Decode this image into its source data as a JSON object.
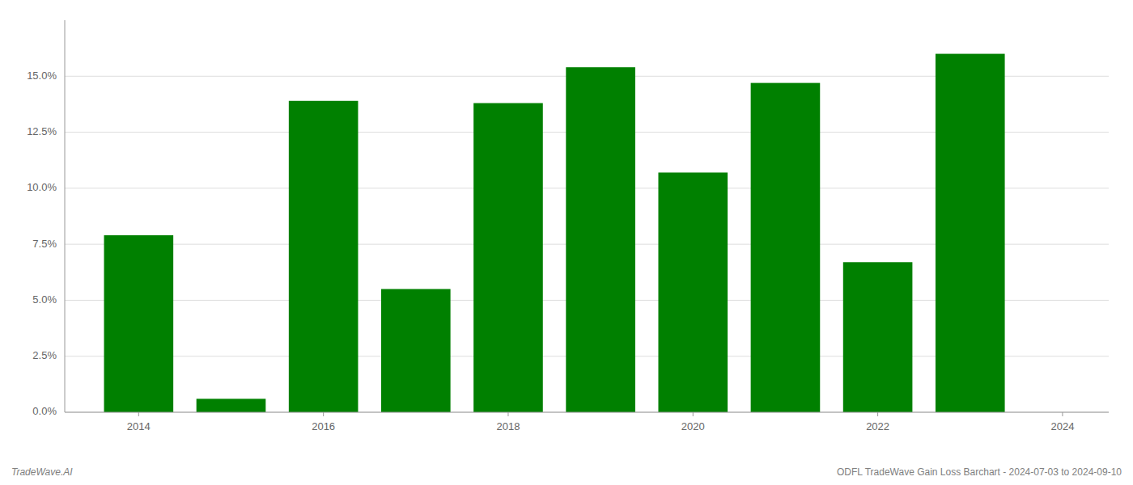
{
  "chart_data": {
    "type": "bar",
    "title": "ODFL TradeWave Gain Loss Barchart - 2024-07-03 to 2024-09-10",
    "annotations": [
      "TradeWave.AI"
    ],
    "x": [
      2014,
      2015,
      2016,
      2017,
      2018,
      2019,
      2020,
      2021,
      2022,
      2023
    ],
    "values": [
      0.079,
      0.006,
      0.139,
      0.055,
      0.138,
      0.154,
      0.107,
      0.147,
      0.067,
      0.16
    ],
    "color": "#008000",
    "xlim": [
      2013.2,
      2024.5
    ],
    "xticks": [
      2014,
      2016,
      2018,
      2020,
      2022,
      2024
    ],
    "ylim": [
      0,
      0.175
    ],
    "yticks": [
      {
        "value": 0.0,
        "label": "0.0%"
      },
      {
        "value": 0.025,
        "label": "2.5%"
      },
      {
        "value": 0.05,
        "label": "5.0%"
      },
      {
        "value": 0.075,
        "label": "7.5%"
      },
      {
        "value": 0.1,
        "label": "10.0%"
      },
      {
        "value": 0.125,
        "label": "12.5%"
      },
      {
        "value": 0.15,
        "label": "15.0%"
      }
    ],
    "grid": true
  }
}
